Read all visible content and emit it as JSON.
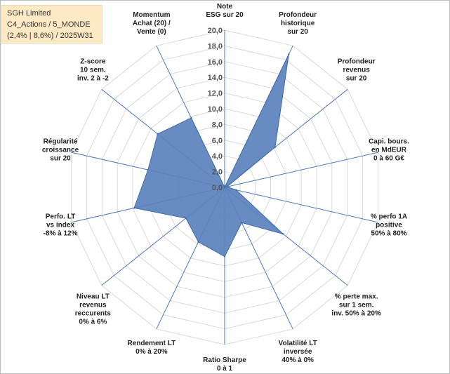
{
  "header": {
    "line1": "SGH Limited",
    "line2": "C4_Actions / 5_MONDE",
    "line3": "(2,4% | 8,6%) / 2025W31"
  },
  "chart_data": {
    "type": "radar",
    "title": "",
    "range": [
      0,
      20
    ],
    "tick_step": 2,
    "ticks": [
      "0,0",
      "2,0",
      "4,0",
      "6,0",
      "8,0",
      "10,0",
      "12,0",
      "14,0",
      "16,0",
      "18,0",
      "20,0"
    ],
    "grid": true,
    "categories": [
      [
        "Note",
        "ESG sur 20"
      ],
      [
        "Profondeur",
        "historique",
        "sur 20"
      ],
      [
        "Profondeur",
        "revenus",
        "sur 20"
      ],
      [
        "Capi. bours.",
        "en MdEUR",
        "0 à 60 G€"
      ],
      [
        "% perfo 1A",
        "positive",
        "50% à 80%"
      ],
      [
        "% perte max.",
        "sur 1 sem.",
        "inv. 50% à 20%"
      ],
      [
        "Volatilité LT",
        "inversée",
        "40% à 0%"
      ],
      [
        "Ratio Sharpe",
        "0 à 1"
      ],
      [
        "Rendement LT",
        "0% à 20%"
      ],
      [
        "Niveau LT",
        "revenus",
        "reccurents",
        "0% à 6%"
      ],
      [
        "Perfo. LT",
        "vs index",
        "-8% à 12%"
      ],
      [
        "Régularité",
        "croissance",
        "sur 20"
      ],
      [
        "Z-score",
        "10 sem.",
        "inv. 2 à -2"
      ],
      [
        "Momentum",
        "Achat (20) /",
        "Vente (0)"
      ]
    ],
    "series": [
      {
        "values": [
          0.0,
          18.8,
          8.2,
          0.3,
          1.5,
          9.5,
          5.0,
          8.8,
          7.7,
          6.3,
          11.8,
          10.0,
          10.9,
          9.8
        ],
        "color": "#5b82bd"
      }
    ]
  },
  "colors": {
    "fill": "#5b82bd",
    "stroke": "#3f6aa8",
    "grid": "#d9d9d9",
    "spoke": "#4a78c2",
    "title_bg": "#fde9c4"
  }
}
